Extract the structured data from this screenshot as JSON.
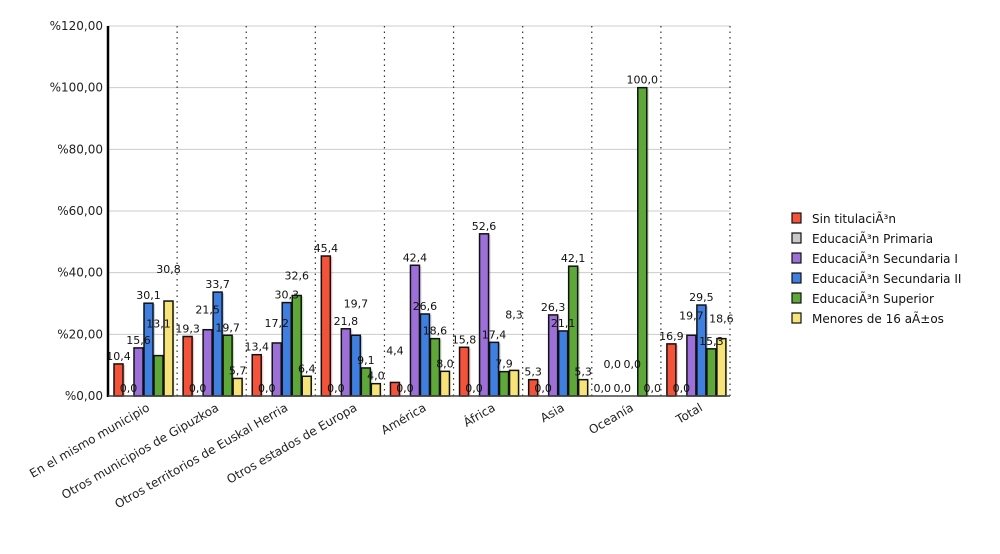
{
  "chart_data": {
    "type": "bar",
    "title": "",
    "xlabel": "",
    "ylabel": "",
    "ylim": [
      0,
      120
    ],
    "yticks": [
      "%0,00",
      "%20,00",
      "%40,00",
      "%60,00",
      "%80,00",
      "%100,00",
      "%120,00"
    ],
    "grid": true,
    "legend_position": "right",
    "categories": [
      "En el mismo municipio",
      "Otros municipios de Gipuzkoa",
      "Otros territorios de Euskal Herria",
      "Otros estados de Europa",
      "América",
      "África",
      "Asia",
      "Oceanía",
      "Total"
    ],
    "series": [
      {
        "name": "Sin titulaciÃ³n",
        "color": "#f4533a",
        "values": [
          10.4,
          19.3,
          13.4,
          45.4,
          4.4,
          15.8,
          5.3,
          0.0,
          16.9
        ],
        "labels": [
          "10,4",
          "19,3",
          "13,4",
          "45,4",
          "4,4",
          "15,8",
          "5,3",
          "0,0",
          "16,9"
        ]
      },
      {
        "name": "EducaciÃ³n Primaria",
        "color": "#c8c8c8",
        "values": [
          0,
          0,
          0,
          0,
          0,
          0,
          0,
          0,
          0
        ],
        "labels": [
          "0,0",
          "0,0",
          "0,0",
          "0,0",
          "0,0",
          "0,0",
          "0,0",
          "0,0",
          "0,0"
        ]
      },
      {
        "name": "EducaciÃ³n Secundaria I",
        "color": "#9c6fd9",
        "values": [
          15.6,
          21.5,
          17.2,
          21.8,
          42.4,
          52.6,
          26.3,
          0.0,
          19.7
        ],
        "labels": [
          "15,6",
          "21,5",
          "17,2",
          "21,8",
          "42,4",
          "52,6",
          "26,3",
          "0,0",
          "19,7"
        ]
      },
      {
        "name": "EducaciÃ³n Secundaria II",
        "color": "#3f7fe0",
        "values": [
          30.1,
          33.7,
          30.3,
          19.7,
          26.6,
          17.4,
          21.1,
          0.0,
          29.5
        ],
        "labels": [
          "30,1",
          "33,7",
          "30,3",
          "19,7",
          "26,6",
          "17,4",
          "21,1",
          "0,0",
          "29,5"
        ]
      },
      {
        "name": "EducaciÃ³n Superior",
        "color": "#5ea83a",
        "values": [
          13.1,
          19.7,
          32.6,
          9.1,
          18.6,
          7.9,
          42.1,
          100.0,
          15.3
        ],
        "labels": [
          "13,1",
          "19,7",
          "32,6",
          "9,1",
          "18,6",
          "7,9",
          "42,1",
          "100,0",
          "15,3"
        ]
      },
      {
        "name": "Menores de 16 aÃ±os",
        "color": "#f7e479",
        "values": [
          30.8,
          5.7,
          6.4,
          4.0,
          8.0,
          8.3,
          5.3,
          0.0,
          18.6
        ],
        "labels": [
          "30,8",
          "5,7",
          "6,4",
          "4,0",
          "8,0",
          "8,3",
          "5,3",
          "0,0",
          "18,6"
        ]
      }
    ]
  }
}
